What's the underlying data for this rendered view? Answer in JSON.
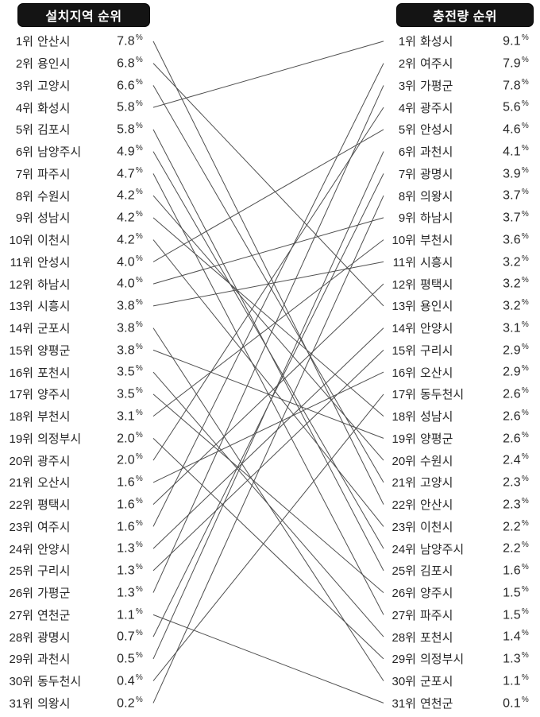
{
  "colors": {
    "header_bg": "#141414",
    "header_text": "#ffffff",
    "row_text": "#262626",
    "line": "#4f4f4f"
  },
  "chart_data": {
    "type": "line",
    "subtype": "slope-bump-ranking",
    "left_axis_title": "설치지역 순위",
    "right_axis_title": "충전량 순위",
    "rank_suffix": "위",
    "unit": "%",
    "left_ranking": [
      {
        "rank": 1,
        "name": "안산시",
        "value": "7.8"
      },
      {
        "rank": 2,
        "name": "용인시",
        "value": "6.8"
      },
      {
        "rank": 3,
        "name": "고양시",
        "value": "6.6"
      },
      {
        "rank": 4,
        "name": "화성시",
        "value": "5.8"
      },
      {
        "rank": 5,
        "name": "김포시",
        "value": "5.8"
      },
      {
        "rank": 6,
        "name": "남양주시",
        "value": "4.9"
      },
      {
        "rank": 7,
        "name": "파주시",
        "value": "4.7"
      },
      {
        "rank": 8,
        "name": "수원시",
        "value": "4.2"
      },
      {
        "rank": 9,
        "name": "성남시",
        "value": "4.2"
      },
      {
        "rank": 10,
        "name": "이천시",
        "value": "4.2"
      },
      {
        "rank": 11,
        "name": "안성시",
        "value": "4.0"
      },
      {
        "rank": 12,
        "name": "하남시",
        "value": "4.0"
      },
      {
        "rank": 13,
        "name": "시흥시",
        "value": "3.8"
      },
      {
        "rank": 14,
        "name": "군포시",
        "value": "3.8"
      },
      {
        "rank": 15,
        "name": "양평군",
        "value": "3.8"
      },
      {
        "rank": 16,
        "name": "포천시",
        "value": "3.5"
      },
      {
        "rank": 17,
        "name": "양주시",
        "value": "3.5"
      },
      {
        "rank": 18,
        "name": "부천시",
        "value": "3.1"
      },
      {
        "rank": 19,
        "name": "의정부시",
        "value": "2.0"
      },
      {
        "rank": 20,
        "name": "광주시",
        "value": "2.0"
      },
      {
        "rank": 21,
        "name": "오산시",
        "value": "1.6"
      },
      {
        "rank": 22,
        "name": "평택시",
        "value": "1.6"
      },
      {
        "rank": 23,
        "name": "여주시",
        "value": "1.6"
      },
      {
        "rank": 24,
        "name": "안양시",
        "value": "1.3"
      },
      {
        "rank": 25,
        "name": "구리시",
        "value": "1.3"
      },
      {
        "rank": 26,
        "name": "가평군",
        "value": "1.3"
      },
      {
        "rank": 27,
        "name": "연천군",
        "value": "1.1"
      },
      {
        "rank": 28,
        "name": "광명시",
        "value": "0.7"
      },
      {
        "rank": 29,
        "name": "과천시",
        "value": "0.5"
      },
      {
        "rank": 30,
        "name": "동두천시",
        "value": "0.4"
      },
      {
        "rank": 31,
        "name": "의왕시",
        "value": "0.2"
      }
    ],
    "right_ranking": [
      {
        "rank": 1,
        "name": "화성시",
        "value": "9.1"
      },
      {
        "rank": 2,
        "name": "여주시",
        "value": "7.9"
      },
      {
        "rank": 3,
        "name": "가평군",
        "value": "7.8"
      },
      {
        "rank": 4,
        "name": "광주시",
        "value": "5.6"
      },
      {
        "rank": 5,
        "name": "안성시",
        "value": "4.6"
      },
      {
        "rank": 6,
        "name": "과천시",
        "value": "4.1"
      },
      {
        "rank": 7,
        "name": "광명시",
        "value": "3.9"
      },
      {
        "rank": 8,
        "name": "의왕시",
        "value": "3.7"
      },
      {
        "rank": 9,
        "name": "하남시",
        "value": "3.7"
      },
      {
        "rank": 10,
        "name": "부천시",
        "value": "3.6"
      },
      {
        "rank": 11,
        "name": "시흥시",
        "value": "3.2"
      },
      {
        "rank": 12,
        "name": "평택시",
        "value": "3.2"
      },
      {
        "rank": 13,
        "name": "용인시",
        "value": "3.2"
      },
      {
        "rank": 14,
        "name": "안양시",
        "value": "3.1"
      },
      {
        "rank": 15,
        "name": "구리시",
        "value": "2.9"
      },
      {
        "rank": 16,
        "name": "오산시",
        "value": "2.9"
      },
      {
        "rank": 17,
        "name": "동두천시",
        "value": "2.6"
      },
      {
        "rank": 18,
        "name": "성남시",
        "value": "2.6"
      },
      {
        "rank": 19,
        "name": "양평군",
        "value": "2.6"
      },
      {
        "rank": 20,
        "name": "수원시",
        "value": "2.4"
      },
      {
        "rank": 21,
        "name": "고양시",
        "value": "2.3"
      },
      {
        "rank": 22,
        "name": "안산시",
        "value": "2.3"
      },
      {
        "rank": 23,
        "name": "이천시",
        "value": "2.2"
      },
      {
        "rank": 24,
        "name": "남양주시",
        "value": "2.2"
      },
      {
        "rank": 25,
        "name": "김포시",
        "value": "1.6"
      },
      {
        "rank": 26,
        "name": "양주시",
        "value": "1.5"
      },
      {
        "rank": 27,
        "name": "파주시",
        "value": "1.5"
      },
      {
        "rank": 28,
        "name": "포천시",
        "value": "1.4"
      },
      {
        "rank": 29,
        "name": "의정부시",
        "value": "1.3"
      },
      {
        "rank": 30,
        "name": "군포시",
        "value": "1.1"
      },
      {
        "rank": 31,
        "name": "연천군",
        "value": "0.1"
      }
    ]
  }
}
